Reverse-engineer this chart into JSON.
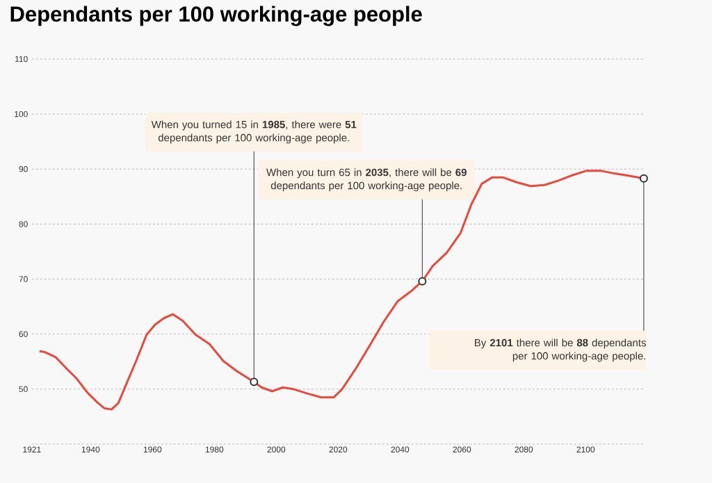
{
  "chart_data": {
    "type": "line",
    "title": "Dependants per 100 working-age people",
    "x": [
      1923.5,
      1925.3,
      1928.7,
      1932.1,
      1935.5,
      1938.9,
      1942.3,
      1944.5,
      1946.8,
      1949.0,
      1951.3,
      1954.7,
      1958.1,
      1960.8,
      1963.7,
      1966.6,
      1969.8,
      1973.9,
      1978.4,
      1982.9,
      1987.4,
      1992.8,
      1995.3,
      1998.7,
      2002.1,
      2005.5,
      2010.0,
      2014.5,
      2018.6,
      2021.3,
      2025.8,
      2030.3,
      2034.8,
      2039.3,
      2043.8,
      2047.2,
      2050.6,
      2055.1,
      2059.6,
      2063.0,
      2066.4,
      2069.8,
      2073.2,
      2077.7,
      2082.2,
      2086.7,
      2091.2,
      2095.8,
      2100.3,
      2104.8,
      2109.3,
      2113.8,
      2118.8
    ],
    "values": [
      56.9,
      56.7,
      55.8,
      53.8,
      51.9,
      49.4,
      47.5,
      46.5,
      46.3,
      47.5,
      50.6,
      55.1,
      59.9,
      61.7,
      62.9,
      63.6,
      62.4,
      59.9,
      58.2,
      55.1,
      53.2,
      51.3,
      50.3,
      49.6,
      50.3,
      50.0,
      49.2,
      48.5,
      48.5,
      50.0,
      53.8,
      58.0,
      62.3,
      66.0,
      67.9,
      69.6,
      72.4,
      74.8,
      78.4,
      83.5,
      87.3,
      88.5,
      88.5,
      87.6,
      86.9,
      87.1,
      87.9,
      88.9,
      89.7,
      89.7,
      89.2,
      88.8,
      88.3
    ],
    "color": "#e8493d",
    "xlim": [
      1921,
      2119
    ],
    "ylim": [
      40,
      110
    ],
    "xticks": [
      1921,
      1940,
      1960,
      1980,
      2000,
      2020,
      2040,
      2060,
      2080,
      2100
    ],
    "yticks": [
      {
        "value": 40,
        "label": null
      },
      50,
      60,
      70,
      80,
      90,
      100,
      110
    ],
    "grid": "y",
    "annotations": [
      {
        "text": "When you turned 15 in **1985**, there were **51** dependants per 100 working-age people.",
        "x": 1992.8,
        "y": 51.3
      },
      {
        "text": "When you turn 65 in **2035**, there will be **69** dependants per 100 working-age people.",
        "x": 2047.2,
        "y": 69.6
      },
      {
        "text": "By **2101** there will be **88** dependants per 100 working-age people.",
        "x": 2118.8,
        "y": 88.3
      }
    ]
  }
}
